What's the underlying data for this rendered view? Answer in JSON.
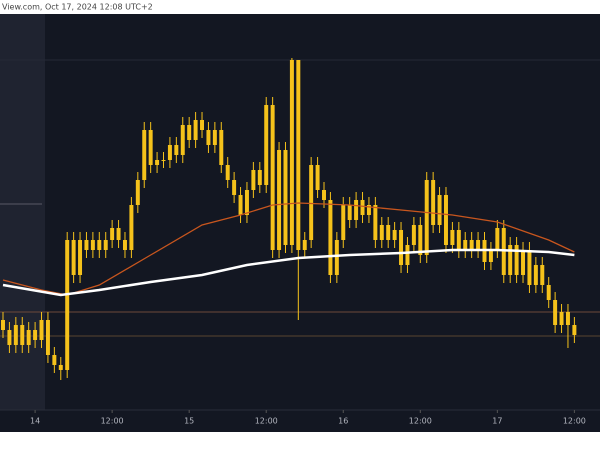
{
  "chart_data": {
    "type": "candlestick",
    "header": "View.com, Oct 17, 2024 12:08 UTC+2",
    "color": "#f5c21b",
    "open": [
      90,
      80,
      65,
      85,
      65,
      80,
      70,
      90,
      55,
      45,
      40,
      170,
      135,
      170,
      160,
      170,
      160,
      170,
      182,
      170,
      160,
      205,
      230,
      280,
      245,
      250,
      250,
      265,
      255,
      285,
      270,
      290,
      280,
      265,
      280,
      245,
      230,
      215,
      195,
      220,
      240,
      225,
      305,
      160,
      260,
      165,
      350,
      160,
      170,
      245,
      220,
      210,
      135,
      170,
      205,
      190,
      210,
      195,
      205,
      170,
      185,
      170,
      180,
      145,
      165,
      185,
      155,
      230,
      185,
      215,
      165,
      180,
      160,
      170,
      160,
      170,
      148,
      160,
      182,
      135,
      165,
      135,
      160,
      125,
      145,
      125,
      110,
      85,
      98,
      85
    ],
    "high": [
      98,
      88,
      93,
      93,
      88,
      88,
      98,
      98,
      63,
      53,
      178,
      178,
      178,
      178,
      178,
      178,
      178,
      190,
      190,
      178,
      213,
      238,
      288,
      288,
      258,
      258,
      273,
      273,
      293,
      293,
      298,
      298,
      288,
      288,
      288,
      253,
      238,
      223,
      228,
      248,
      248,
      313,
      313,
      268,
      268,
      352,
      350,
      178,
      253,
      253,
      228,
      218,
      178,
      213,
      213,
      218,
      218,
      213,
      213,
      193,
      193,
      188,
      188,
      173,
      193,
      193,
      238,
      238,
      223,
      223,
      188,
      188,
      178,
      178,
      178,
      178,
      168,
      190,
      190,
      173,
      173,
      168,
      168,
      153,
      153,
      133,
      118,
      106,
      106,
      93
    ],
    "low": [
      72,
      57,
      57,
      57,
      57,
      62,
      62,
      47,
      37,
      30,
      32,
      127,
      127,
      152,
      152,
      152,
      152,
      162,
      162,
      152,
      152,
      197,
      222,
      237,
      237,
      242,
      242,
      247,
      247,
      262,
      262,
      272,
      257,
      257,
      237,
      222,
      207,
      187,
      187,
      212,
      217,
      217,
      152,
      152,
      157,
      157,
      90,
      152,
      162,
      212,
      202,
      127,
      127,
      162,
      182,
      182,
      187,
      187,
      162,
      162,
      162,
      162,
      137,
      137,
      157,
      147,
      147,
      177,
      177,
      157,
      157,
      152,
      152,
      152,
      152,
      140,
      140,
      152,
      127,
      127,
      127,
      127,
      117,
      117,
      117,
      102,
      77,
      77,
      62,
      67
    ],
    "close": [
      80,
      65,
      85,
      65,
      80,
      70,
      90,
      55,
      45,
      40,
      170,
      135,
      170,
      160,
      170,
      160,
      170,
      182,
      170,
      160,
      205,
      230,
      280,
      245,
      250,
      250,
      265,
      255,
      285,
      270,
      290,
      280,
      265,
      280,
      245,
      230,
      215,
      195,
      220,
      240,
      225,
      305,
      160,
      260,
      165,
      350,
      160,
      170,
      245,
      220,
      210,
      135,
      170,
      205,
      190,
      210,
      195,
      205,
      170,
      185,
      170,
      180,
      145,
      165,
      185,
      155,
      230,
      185,
      215,
      165,
      180,
      160,
      170,
      160,
      170,
      148,
      160,
      182,
      135,
      165,
      135,
      160,
      125,
      145,
      125,
      110,
      85,
      98,
      85,
      75
    ],
    "lines": [
      {
        "color": "#c8561e",
        "x": [
          0,
          6,
          10,
          15,
          23,
          31,
          37,
          42,
          46,
          54,
          62,
          70,
          77,
          85,
          89
        ],
        "values": [
          130,
          120,
          115,
          125,
          155,
          185,
          195,
          205,
          207,
          205,
          200,
          195,
          188,
          170,
          158
        ]
      },
      {
        "color": "#ffffff",
        "x": [
          0,
          9,
          15,
          23,
          31,
          38,
          46,
          54,
          62,
          70,
          77,
          85,
          89
        ],
        "values": [
          125,
          115,
          120,
          128,
          135,
          145,
          152,
          155,
          157,
          160,
          160,
          158,
          155
        ]
      }
    ],
    "xlim": [
      -0.467,
      92.99
    ],
    "ylim": [
      0,
      396
    ],
    "xticks": [
      {
        "value": 5,
        "label": "14"
      },
      {
        "value": 17,
        "label": "12:00"
      },
      {
        "value": 29,
        "label": "15"
      },
      {
        "value": 41,
        "label": "12:00"
      },
      {
        "value": 53,
        "label": "16"
      },
      {
        "value": 65,
        "label": "12:00"
      },
      {
        "value": 77,
        "label": "17"
      },
      {
        "value": 89,
        "label": "12:00"
      }
    ]
  }
}
